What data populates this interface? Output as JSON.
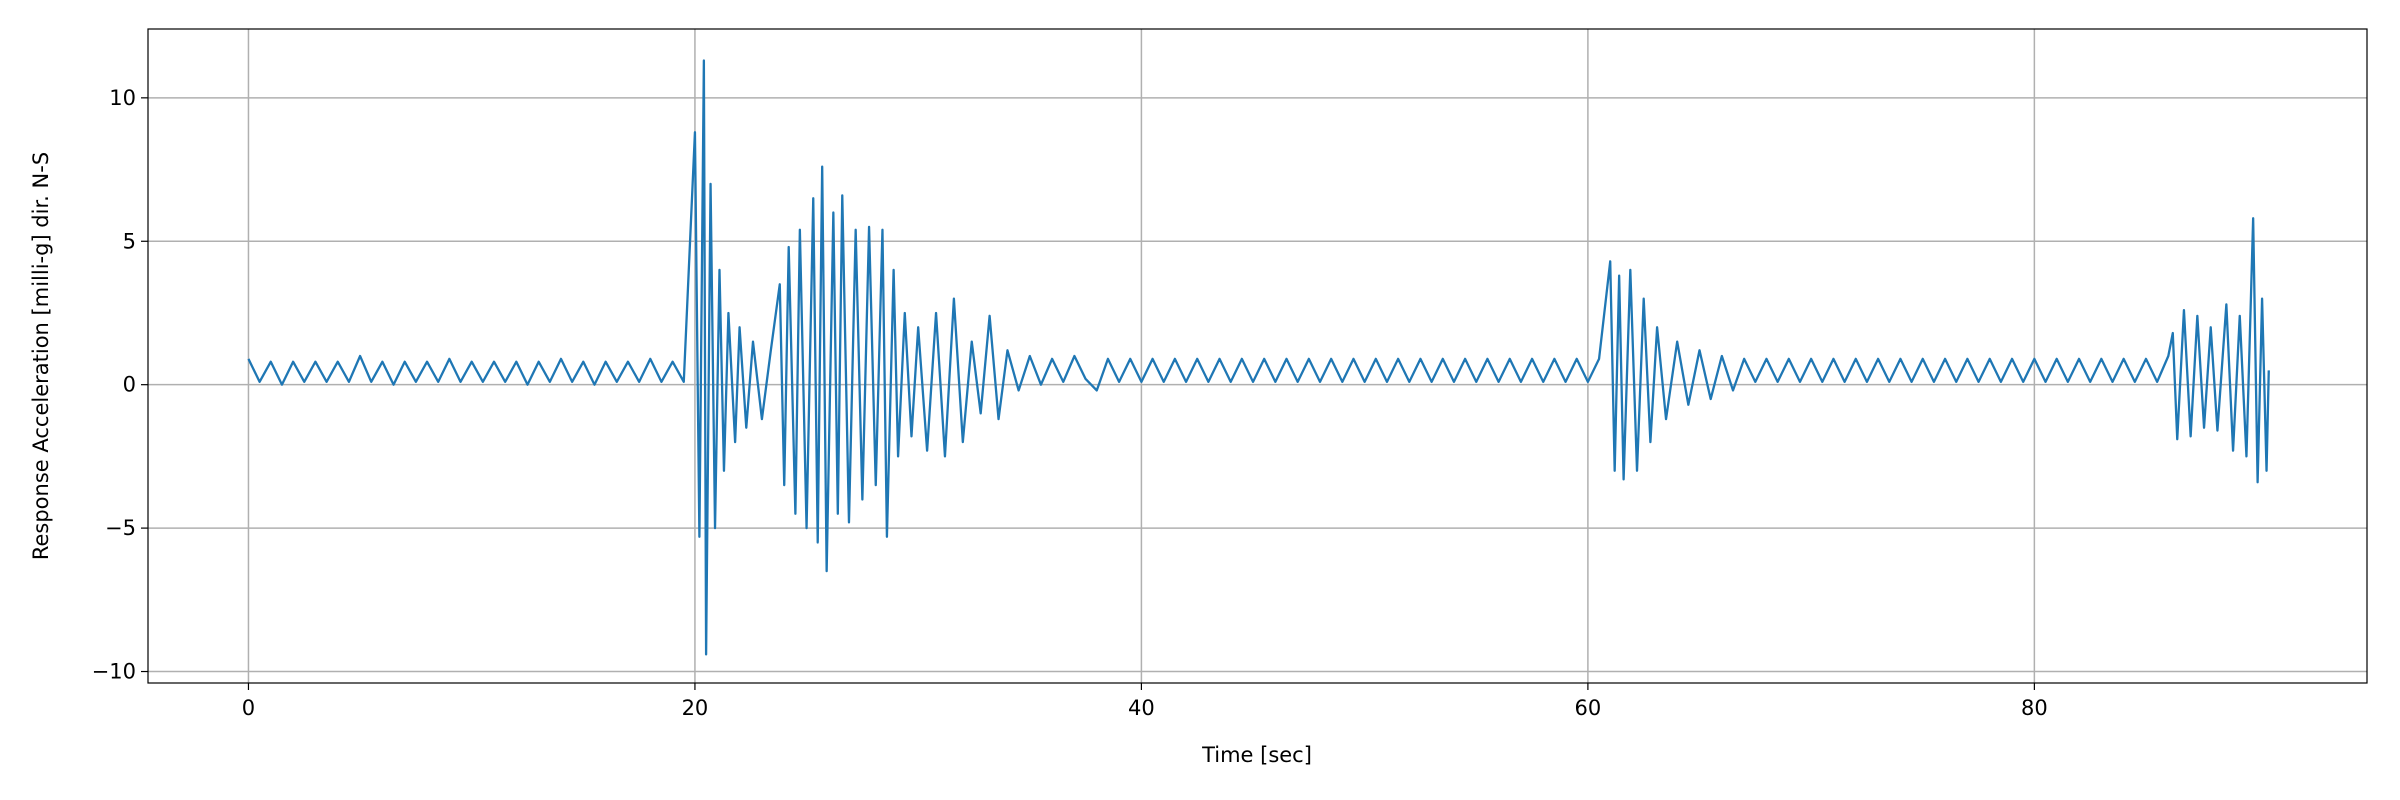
{
  "chart_data": {
    "type": "line",
    "xlabel": "Time [sec]",
    "ylabel": "Response Acceleration [milli-g] dir. N-S",
    "xlim": [
      -4.5,
      94.9
    ],
    "ylim": [
      -10.4,
      12.4
    ],
    "xticks": [
      0,
      20,
      40,
      60,
      80
    ],
    "yticks": [
      {
        "value": -10,
        "label": "−10"
      },
      {
        "value": -5,
        "label": "−5"
      },
      0,
      5,
      10
    ],
    "grid": true,
    "series": [
      {
        "color": "#1f77b4",
        "x": [
          0,
          0.5,
          1,
          1.5,
          2,
          2.5,
          3,
          3.5,
          4,
          4.5,
          5,
          5.5,
          6,
          6.5,
          7,
          7.5,
          8,
          8.5,
          9,
          9.5,
          10,
          10.5,
          11,
          11.5,
          12,
          12.5,
          13,
          13.5,
          14,
          14.5,
          15,
          15.5,
          16,
          16.5,
          17,
          17.5,
          18,
          18.5,
          19,
          19.5,
          20.0,
          20.2,
          20.4,
          20.5,
          20.7,
          20.9,
          21.1,
          21.3,
          21.5,
          21.8,
          22.0,
          22.3,
          22.6,
          23.0,
          23.4,
          23.8,
          24.0,
          24.2,
          24.5,
          24.7,
          25.0,
          25.3,
          25.5,
          25.7,
          25.9,
          26.2,
          26.4,
          26.6,
          26.9,
          27.2,
          27.5,
          27.8,
          28.1,
          28.4,
          28.6,
          28.9,
          29.1,
          29.4,
          29.7,
          30.0,
          30.4,
          30.8,
          31.2,
          31.6,
          32.0,
          32.4,
          32.8,
          33.2,
          33.6,
          34.0,
          34.5,
          35,
          35.5,
          36,
          36.5,
          37,
          37.5,
          38,
          38.5,
          39,
          39.5,
          40,
          40.5,
          41,
          41.5,
          42,
          42.5,
          43,
          43.5,
          44,
          44.5,
          45,
          45.5,
          46,
          46.5,
          47,
          47.5,
          48,
          48.5,
          49,
          49.5,
          50,
          50.5,
          51,
          51.5,
          52,
          52.5,
          53,
          53.5,
          54,
          54.5,
          55,
          55.5,
          56,
          56.5,
          57,
          57.5,
          58,
          58.5,
          59,
          59.5,
          60,
          60.5,
          61.0,
          61.2,
          61.4,
          61.6,
          61.9,
          62.2,
          62.5,
          62.8,
          63.1,
          63.5,
          64.0,
          64.5,
          65.0,
          65.5,
          66.0,
          66.5,
          67,
          67.5,
          68,
          68.5,
          69,
          69.5,
          70,
          70.5,
          71,
          71.5,
          72,
          72.5,
          73,
          73.5,
          74,
          74.5,
          75,
          75.5,
          76,
          76.5,
          77,
          77.5,
          78,
          78.5,
          79,
          79.5,
          80,
          80.5,
          81,
          81.5,
          82,
          82.5,
          83,
          83.5,
          84,
          84.5,
          85,
          85.5,
          86.0,
          86.2,
          86.4,
          86.7,
          87.0,
          87.3,
          87.6,
          87.9,
          88.2,
          88.6,
          88.9,
          89.2,
          89.5,
          89.8,
          90.0,
          90.2,
          90.4,
          90.5
        ],
        "values": [
          0.9,
          0.1,
          0.8,
          0.0,
          0.8,
          0.1,
          0.8,
          0.1,
          0.8,
          0.1,
          1.0,
          0.1,
          0.8,
          0.0,
          0.8,
          0.1,
          0.8,
          0.1,
          0.9,
          0.1,
          0.8,
          0.1,
          0.8,
          0.1,
          0.8,
          0.0,
          0.8,
          0.1,
          0.9,
          0.1,
          0.8,
          0.0,
          0.8,
          0.1,
          0.8,
          0.1,
          0.9,
          0.1,
          0.8,
          0.1,
          8.8,
          -5.3,
          11.3,
          -9.4,
          7,
          -5,
          4,
          -3,
          2.5,
          -2,
          2,
          -1.5,
          1.5,
          -1.2,
          1.2,
          3.5,
          -3.5,
          4.8,
          -4.5,
          5.4,
          -5,
          6.5,
          -5.5,
          7.6,
          -6.5,
          6,
          -4.5,
          6.6,
          -4.8,
          5.4,
          -4,
          5.5,
          -3.5,
          5.4,
          -5.3,
          4,
          -2.5,
          2.5,
          -1.8,
          2,
          -2.3,
          2.5,
          -2.5,
          3,
          -2,
          1.5,
          -1,
          2.4,
          -1.2,
          1.2,
          -0.2,
          1.0,
          0.0,
          0.9,
          0.1,
          1.0,
          0.2,
          -0.2,
          0.9,
          0.1,
          0.9,
          0.1,
          0.9,
          0.1,
          0.9,
          0.1,
          0.9,
          0.1,
          0.9,
          0.1,
          0.9,
          0.1,
          0.9,
          0.1,
          0.9,
          0.1,
          0.9,
          0.1,
          0.9,
          0.1,
          0.9,
          0.1,
          0.9,
          0.1,
          0.9,
          0.1,
          0.9,
          0.1,
          0.9,
          0.1,
          0.9,
          0.1,
          0.9,
          0.1,
          0.9,
          0.1,
          0.9,
          0.1,
          0.9,
          0.1,
          0.9,
          0.1,
          0.9,
          4.3,
          -3,
          3.8,
          -3.3,
          4,
          -3,
          3,
          -2,
          2,
          -1.2,
          1.5,
          -0.7,
          1.2,
          -0.5,
          1,
          -0.2,
          0.9,
          0.1,
          0.9,
          0.1,
          0.9,
          0.1,
          0.9,
          0.1,
          0.9,
          0.1,
          0.9,
          0.1,
          0.9,
          0.1,
          0.9,
          0.1,
          0.9,
          0.1,
          0.9,
          0.1,
          0.9,
          0.1,
          0.9,
          0.1,
          0.9,
          0.1,
          0.9,
          0.1,
          0.9,
          0.1,
          0.9,
          0.1,
          0.9,
          0.1,
          0.9,
          0.1,
          0.9,
          0.1,
          1.0,
          1.8,
          -1.9,
          2.6,
          -1.8,
          2.4,
          -1.5,
          2,
          -1.6,
          2.8,
          -2.3,
          2.4,
          -2.5,
          5.8,
          -3.4,
          3,
          -3,
          0.5
        ]
      }
    ]
  }
}
